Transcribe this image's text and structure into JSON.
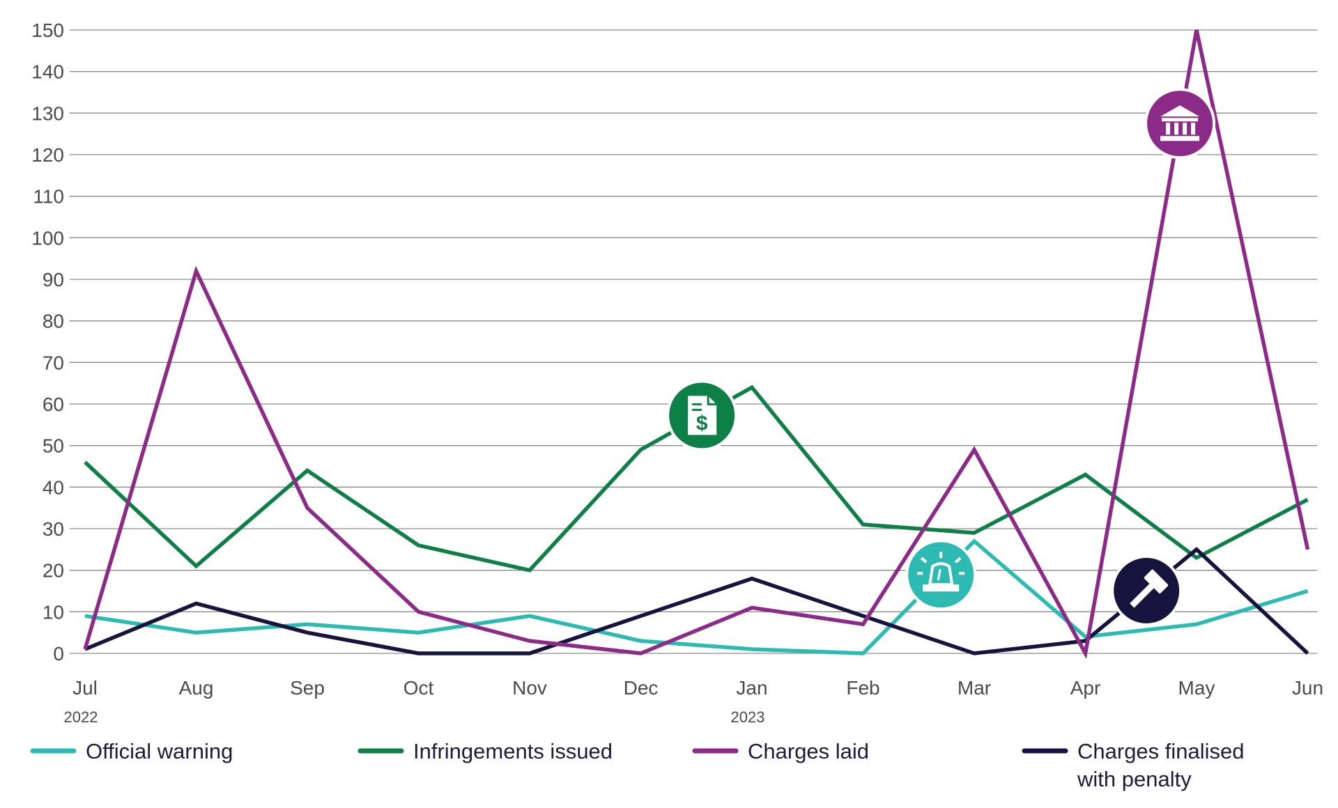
{
  "chart_data": {
    "type": "line",
    "categories": [
      "Jul",
      "Aug",
      "Sep",
      "Oct",
      "Nov",
      "Dec",
      "Jan",
      "Feb",
      "Mar",
      "Apr",
      "May",
      "Jun"
    ],
    "year_labels": [
      {
        "category": "Jul",
        "label": "2022"
      },
      {
        "category": "Jan",
        "label": "2023"
      }
    ],
    "ylim": [
      0,
      150
    ],
    "yticks": [
      0,
      10,
      20,
      30,
      40,
      50,
      60,
      70,
      80,
      90,
      100,
      110,
      120,
      130,
      140,
      150
    ],
    "grid": true,
    "legend_position": "bottom",
    "series": [
      {
        "name": "Official warning",
        "color": "#2dbab3",
        "icon": "siren-icon",
        "values": [
          9,
          5,
          7,
          5,
          9,
          3,
          1,
          0,
          27,
          4,
          7,
          15
        ]
      },
      {
        "name": "Infringements issued",
        "color": "#0f7f48",
        "icon": "invoice-dollar-icon",
        "values": [
          46,
          21,
          44,
          26,
          20,
          49,
          64,
          31,
          29,
          43,
          23,
          37
        ]
      },
      {
        "name": "Charges laid",
        "color": "#8c2a87",
        "icon": "courthouse-icon",
        "values": [
          1,
          92,
          35,
          10,
          3,
          0,
          11,
          7,
          49,
          0,
          150,
          25
        ]
      },
      {
        "name": "Charges finalised with penalty",
        "color": "#17133f",
        "icon": "gavel-icon",
        "values": [
          1,
          12,
          5,
          0,
          0,
          9,
          18,
          9,
          0,
          3,
          25,
          0
        ]
      }
    ]
  }
}
